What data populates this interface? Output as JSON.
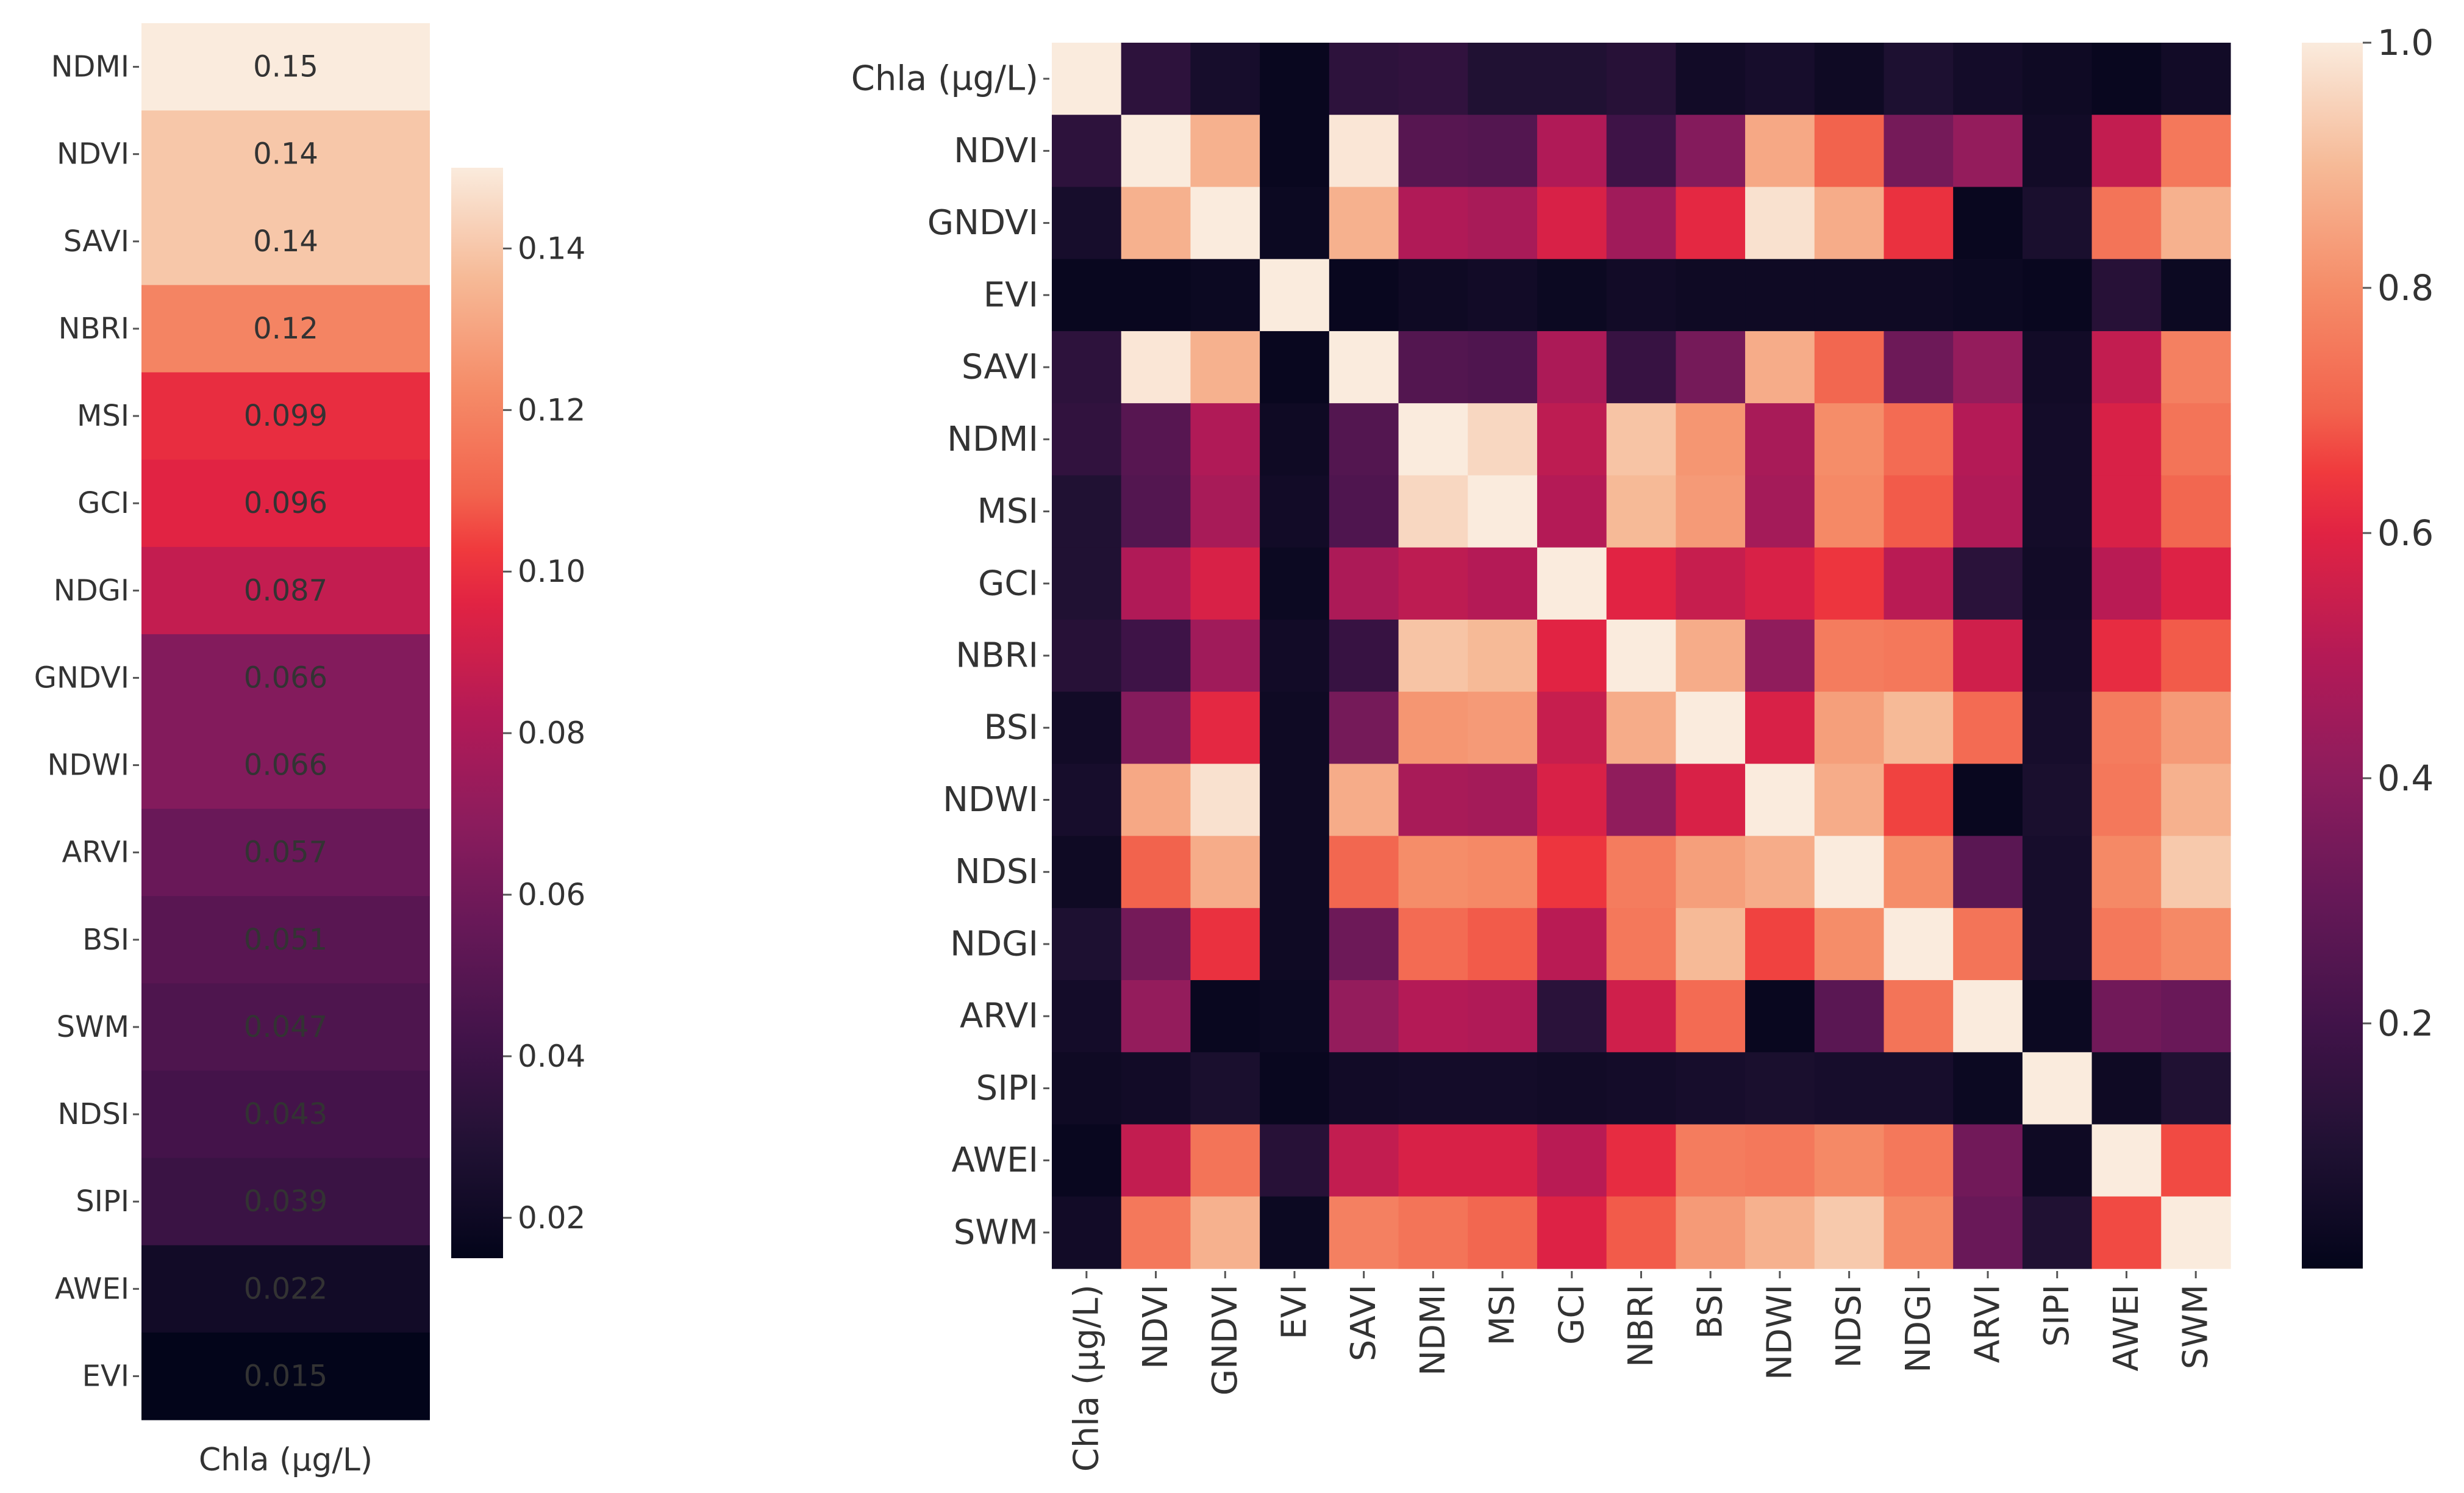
{
  "chart_data": [
    {
      "type": "heatmap",
      "title": "",
      "xlabel": "Chla (µg/L)",
      "rows": [
        "NDMI",
        "NDVI",
        "SAVI",
        "NBRI",
        "MSI",
        "GCI",
        "NDGI",
        "GNDVI",
        "NDWI",
        "ARVI",
        "BSI",
        "SWM",
        "NDSI",
        "SIPI",
        "AWEI",
        "EVI"
      ],
      "values": [
        0.15,
        0.14,
        0.14,
        0.12,
        0.099,
        0.096,
        0.087,
        0.066,
        0.066,
        0.057,
        0.051,
        0.047,
        0.043,
        0.039,
        0.022,
        0.015
      ],
      "annotations": [
        "0.15",
        "0.14",
        "0.14",
        "0.12",
        "0.099",
        "0.096",
        "0.087",
        "0.066",
        "0.066",
        "0.057",
        "0.051",
        "0.047",
        "0.043",
        "0.039",
        "0.022",
        "0.015"
      ],
      "colorbar": {
        "range": [
          0.015,
          0.15
        ],
        "ticks": [
          0.02,
          0.04,
          0.06,
          0.08,
          0.1,
          0.12,
          0.14
        ],
        "tick_labels": [
          "0.02",
          "0.04",
          "0.06",
          "0.08",
          "0.10",
          "0.12",
          "0.14"
        ]
      }
    },
    {
      "type": "heatmap",
      "title": "",
      "labels": [
        "Chla (µg/L)",
        "NDVI",
        "GNDVI",
        "EVI",
        "SAVI",
        "NDMI",
        "MSI",
        "GCI",
        "NBRI",
        "BSI",
        "NDWI",
        "NDSI",
        "NDGI",
        "ARVI",
        "SIPI",
        "AWEI",
        "SWM"
      ],
      "matrix": [
        [
          1.0,
          0.14,
          0.07,
          0.02,
          0.14,
          0.15,
          0.1,
          0.1,
          0.12,
          0.05,
          0.07,
          0.04,
          0.09,
          0.06,
          0.04,
          0.02,
          0.05
        ],
        [
          0.14,
          1.0,
          0.88,
          0.02,
          0.99,
          0.26,
          0.25,
          0.49,
          0.19,
          0.38,
          0.86,
          0.7,
          0.34,
          0.42,
          0.05,
          0.53,
          0.75
        ],
        [
          0.07,
          0.88,
          1.0,
          0.03,
          0.88,
          0.49,
          0.47,
          0.58,
          0.45,
          0.61,
          0.98,
          0.87,
          0.63,
          0.02,
          0.08,
          0.74,
          0.88
        ],
        [
          0.02,
          0.02,
          0.03,
          1.0,
          0.02,
          0.04,
          0.05,
          0.03,
          0.05,
          0.04,
          0.04,
          0.04,
          0.04,
          0.03,
          0.02,
          0.12,
          0.03
        ],
        [
          0.14,
          0.99,
          0.88,
          0.02,
          1.0,
          0.25,
          0.24,
          0.48,
          0.17,
          0.34,
          0.87,
          0.71,
          0.32,
          0.42,
          0.05,
          0.53,
          0.77
        ],
        [
          0.15,
          0.26,
          0.49,
          0.04,
          0.25,
          1.0,
          0.96,
          0.52,
          0.92,
          0.82,
          0.47,
          0.8,
          0.72,
          0.5,
          0.06,
          0.58,
          0.74
        ],
        [
          0.1,
          0.25,
          0.47,
          0.05,
          0.24,
          0.96,
          1.0,
          0.5,
          0.9,
          0.83,
          0.46,
          0.79,
          0.69,
          0.49,
          0.06,
          0.58,
          0.71
        ],
        [
          0.1,
          0.49,
          0.58,
          0.03,
          0.48,
          0.52,
          0.5,
          1.0,
          0.6,
          0.54,
          0.58,
          0.64,
          0.51,
          0.13,
          0.05,
          0.51,
          0.59
        ],
        [
          0.12,
          0.19,
          0.45,
          0.05,
          0.17,
          0.92,
          0.9,
          0.6,
          1.0,
          0.87,
          0.41,
          0.76,
          0.75,
          0.56,
          0.06,
          0.62,
          0.69
        ],
        [
          0.05,
          0.38,
          0.61,
          0.04,
          0.34,
          0.82,
          0.83,
          0.54,
          0.87,
          1.0,
          0.58,
          0.84,
          0.9,
          0.72,
          0.07,
          0.76,
          0.83
        ],
        [
          0.07,
          0.86,
          0.98,
          0.04,
          0.87,
          0.47,
          0.46,
          0.58,
          0.41,
          0.58,
          1.0,
          0.87,
          0.66,
          0.02,
          0.08,
          0.75,
          0.88
        ],
        [
          0.04,
          0.7,
          0.87,
          0.04,
          0.71,
          0.8,
          0.79,
          0.64,
          0.76,
          0.84,
          0.87,
          1.0,
          0.8,
          0.27,
          0.07,
          0.79,
          0.93
        ],
        [
          0.09,
          0.34,
          0.63,
          0.04,
          0.32,
          0.72,
          0.69,
          0.51,
          0.75,
          0.9,
          0.66,
          0.8,
          1.0,
          0.74,
          0.07,
          0.75,
          0.79
        ],
        [
          0.06,
          0.42,
          0.02,
          0.03,
          0.42,
          0.5,
          0.49,
          0.13,
          0.56,
          0.72,
          0.02,
          0.27,
          0.74,
          1.0,
          0.03,
          0.33,
          0.31
        ],
        [
          0.04,
          0.05,
          0.08,
          0.02,
          0.05,
          0.06,
          0.06,
          0.05,
          0.06,
          0.07,
          0.08,
          0.07,
          0.07,
          0.03,
          1.0,
          0.04,
          0.1
        ],
        [
          0.02,
          0.53,
          0.74,
          0.12,
          0.53,
          0.58,
          0.58,
          0.51,
          0.62,
          0.76,
          0.75,
          0.79,
          0.75,
          0.33,
          0.04,
          1.0,
          0.67
        ],
        [
          0.05,
          0.75,
          0.88,
          0.03,
          0.77,
          0.74,
          0.71,
          0.59,
          0.69,
          0.83,
          0.88,
          0.93,
          0.79,
          0.31,
          0.1,
          0.67,
          1.0
        ]
      ],
      "colorbar": {
        "range": [
          0.0,
          1.0
        ],
        "ticks": [
          0.2,
          0.4,
          0.6,
          0.8,
          1.0
        ],
        "tick_labels": [
          "0.2",
          "0.4",
          "0.6",
          "0.8",
          "1.0"
        ]
      }
    }
  ]
}
